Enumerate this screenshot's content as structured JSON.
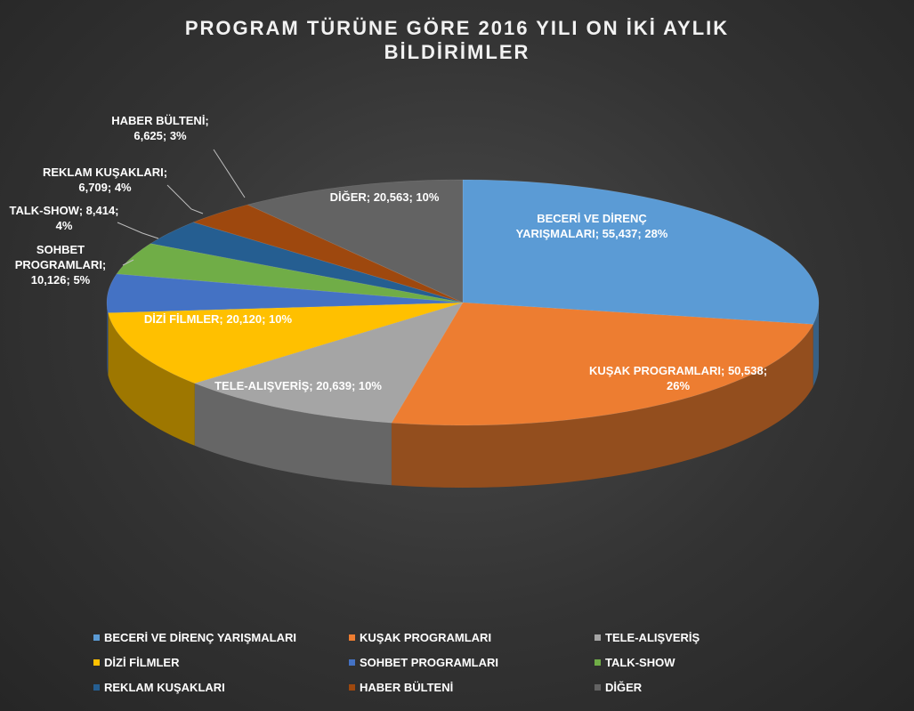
{
  "chart_data": {
    "type": "pie3d",
    "title": "PROGRAM TÜRÜNE GÖRE 2016 YILI ON İKİ AYLIK BİLDİRİMLER",
    "categories": [
      "BECERİ VE DİRENÇ YARIŞMALARI",
      "KUŞAK PROGRAMLARI",
      "TELE-ALIŞVERİŞ",
      "DİZİ FİLMLER",
      "SOHBET PROGRAMLARI",
      "TALK-SHOW",
      "REKLAM KUŞAKLARI",
      "HABER BÜLTENİ",
      "DİĞER"
    ],
    "values": [
      55437,
      50538,
      20639,
      20120,
      10126,
      8414,
      6709,
      6625,
      20563
    ],
    "value_labels": [
      "BECERİ VE DİRENÇ YARIŞMALARI; 55,437; 28%",
      "KUŞAK PROGRAMLARI; 50,538; 26%",
      "TELE-ALIŞVERİŞ; 20,639; 10%",
      "DİZİ FİLMLER; 20,120; 10%",
      "SOHBET PROGRAMLARI; 10,126; 5%",
      "TALK-SHOW; 8,414; 4%",
      "REKLAM KUŞAKLARI; 6,709; 4%",
      "HABER BÜLTENİ; 6,625; 3%",
      "DİĞER; 20,563; 10%"
    ],
    "colors": [
      "#5b9bd5",
      "#ed7d31",
      "#a5a5a5",
      "#ffc000",
      "#4472c4",
      "#70ad47",
      "#255e91",
      "#9e480e",
      "#636363"
    ],
    "legend": "bottom"
  }
}
